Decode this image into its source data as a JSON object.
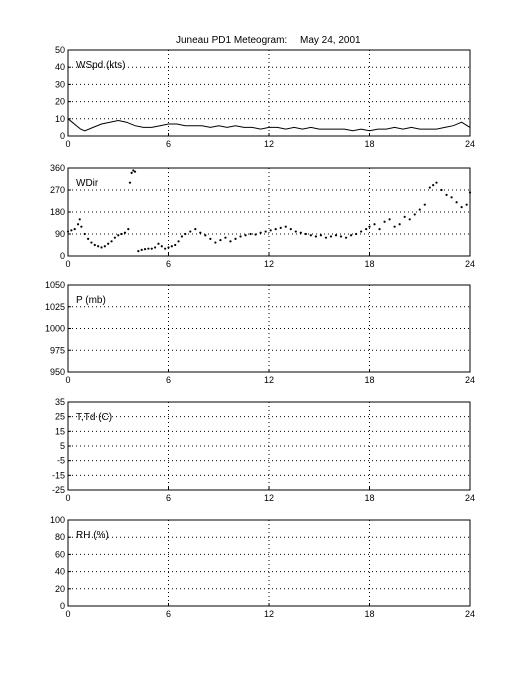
{
  "title": {
    "station": "Juneau PD1 Meteogram:",
    "date": "May 24, 2001"
  },
  "chart_data": [
    {
      "type": "line",
      "label": "WSpd (kts)",
      "xlim": [
        0,
        24
      ],
      "xticks": [
        0,
        6,
        12,
        18,
        24
      ],
      "ylim": [
        0,
        50
      ],
      "yticks": [
        0,
        10,
        20,
        30,
        40,
        50
      ],
      "grid": true,
      "series": [
        {
          "x": [
            0,
            0.25,
            0.5,
            0.75,
            1,
            1.5,
            2,
            2.5,
            3,
            3.5,
            4,
            4.5,
            5,
            5.5,
            6,
            6.5,
            7,
            7.5,
            8,
            8.5,
            9,
            9.5,
            10,
            10.5,
            11,
            11.5,
            12,
            12.5,
            13,
            13.5,
            14,
            14.5,
            15,
            15.5,
            16,
            16.5,
            17,
            17.5,
            18,
            18.5,
            19,
            19.5,
            20,
            20.5,
            21,
            21.5,
            22,
            22.5,
            23,
            23.5,
            24
          ],
          "values": [
            10,
            8,
            6,
            4,
            3,
            5,
            7,
            8,
            9,
            8,
            6,
            5,
            5,
            6,
            7,
            7,
            6,
            6,
            6,
            5,
            6,
            5,
            6,
            5,
            5,
            4,
            5,
            5,
            4,
            5,
            4,
            5,
            4,
            4,
            4,
            4,
            3,
            4,
            3,
            4,
            4,
            5,
            4,
            5,
            4,
            4,
            4,
            5,
            6,
            8,
            5
          ]
        }
      ]
    },
    {
      "type": "scatter",
      "label": "WDir",
      "xlim": [
        0,
        24
      ],
      "xticks": [
        0,
        6,
        12,
        18,
        24
      ],
      "ylim": [
        0,
        360
      ],
      "yticks": [
        0,
        90,
        180,
        270,
        360
      ],
      "grid": true,
      "series": [
        {
          "x": [
            0,
            0.2,
            0.4,
            0.6,
            0.7,
            0.8,
            1,
            1.2,
            1.4,
            1.6,
            1.8,
            2,
            2.2,
            2.4,
            2.6,
            2.8,
            3,
            3.2,
            3.4,
            3.6,
            3.7,
            3.8,
            3.9,
            4.0,
            4.2,
            4.4,
            4.6,
            4.8,
            5,
            5.2,
            5.4,
            5.6,
            5.8,
            6,
            6.2,
            6.4,
            6.6,
            6.8,
            7,
            7.3,
            7.6,
            7.9,
            8.2,
            8.5,
            8.8,
            9.1,
            9.4,
            9.7,
            10,
            10.3,
            10.6,
            10.9,
            11.2,
            11.5,
            11.8,
            12.1,
            12.4,
            12.7,
            13,
            13.3,
            13.6,
            13.9,
            14.2,
            14.5,
            14.8,
            15.1,
            15.4,
            15.7,
            16,
            16.3,
            16.6,
            16.9,
            17.2,
            17.5,
            17.8,
            18,
            18.3,
            18.6,
            18.9,
            19.2,
            19.5,
            19.8,
            20.1,
            20.4,
            20.7,
            21,
            21.3,
            21.6,
            21.8,
            22,
            22.3,
            22.6,
            22.9,
            23.2,
            23.5,
            23.8,
            24
          ],
          "values": [
            100,
            105,
            110,
            130,
            150,
            120,
            90,
            70,
            55,
            45,
            40,
            35,
            40,
            50,
            60,
            75,
            85,
            90,
            95,
            110,
            300,
            340,
            350,
            345,
            20,
            25,
            28,
            30,
            30,
            35,
            50,
            40,
            30,
            35,
            40,
            45,
            60,
            80,
            90,
            100,
            110,
            95,
            85,
            70,
            55,
            65,
            75,
            60,
            70,
            80,
            85,
            90,
            88,
            95,
            100,
            105,
            110,
            115,
            120,
            110,
            100,
            95,
            90,
            85,
            80,
            85,
            75,
            80,
            85,
            80,
            75,
            85,
            90,
            100,
            110,
            120,
            130,
            110,
            140,
            150,
            120,
            130,
            160,
            150,
            170,
            190,
            210,
            280,
            290,
            300,
            270,
            250,
            240,
            220,
            200,
            210,
            260
          ]
        }
      ]
    },
    {
      "type": "line",
      "label": "P (mb)",
      "xlim": [
        0,
        24
      ],
      "xticks": [
        0,
        6,
        12,
        18,
        24
      ],
      "ylim": [
        950,
        1050
      ],
      "yticks": [
        950,
        975,
        1000,
        1025,
        1050
      ],
      "grid": true,
      "series": []
    },
    {
      "type": "line",
      "label": "T,Td (C)",
      "xlim": [
        0,
        24
      ],
      "xticks": [
        0,
        6,
        12,
        18,
        24
      ],
      "ylim": [
        -25,
        35
      ],
      "yticks": [
        -25,
        -15,
        -5,
        5,
        15,
        25,
        35
      ],
      "grid": true,
      "series": []
    },
    {
      "type": "line",
      "label": "RH (%)",
      "xlim": [
        0,
        24
      ],
      "xticks": [
        0,
        6,
        12,
        18,
        24
      ],
      "ylim": [
        0,
        100
      ],
      "yticks": [
        0,
        20,
        40,
        60,
        80,
        100
      ],
      "grid": true,
      "series": []
    }
  ]
}
